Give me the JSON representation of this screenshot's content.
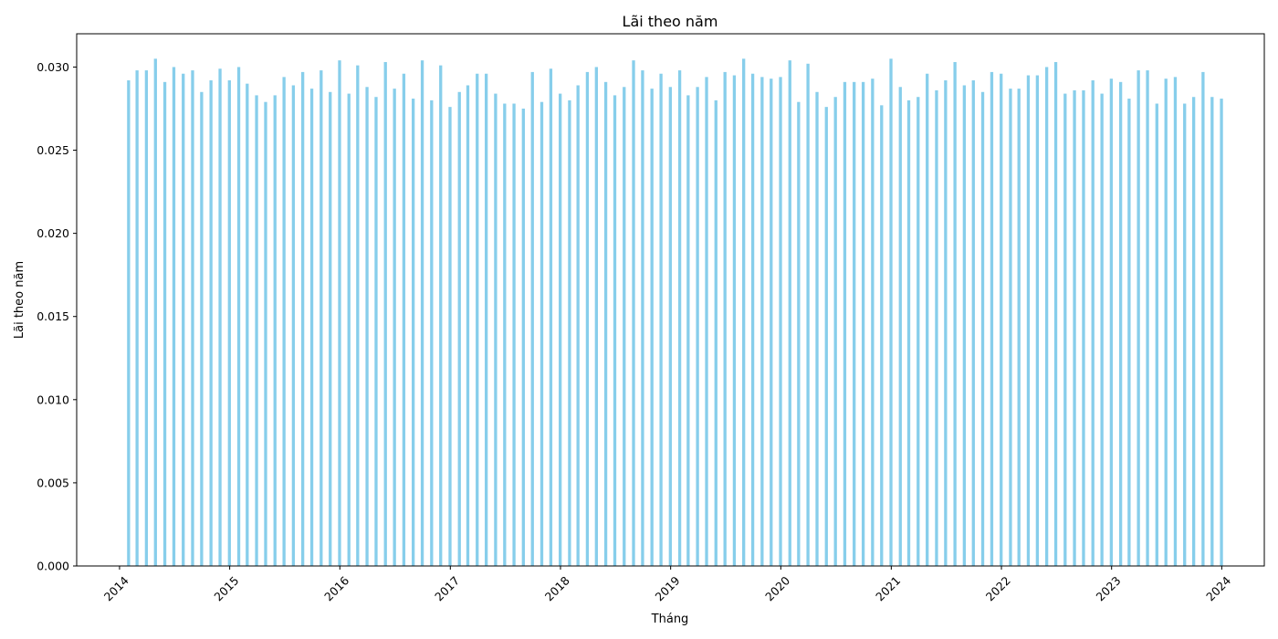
{
  "chart_data": {
    "type": "bar",
    "title": "Lãi theo năm",
    "xlabel": "Tháng",
    "ylabel": "Lãi theo năm",
    "color": "#87ceeb",
    "ylim": [
      0,
      0.032
    ],
    "xlim": [
      "2013-08-12",
      "2024-05-21"
    ],
    "yticks": [
      0.0,
      0.005,
      0.01,
      0.015,
      0.02,
      0.025,
      0.03
    ],
    "ytick_labels": [
      "0.000",
      "0.005",
      "0.010",
      "0.015",
      "0.020",
      "0.025",
      "0.030"
    ],
    "xticks": [
      "2014-01-01",
      "2015-01-01",
      "2016-01-01",
      "2017-01-01",
      "2018-01-01",
      "2019-01-01",
      "2020-01-01",
      "2021-01-01",
      "2022-01-01",
      "2023-01-01",
      "2024-01-01"
    ],
    "xtick_labels": [
      "2014",
      "2015",
      "2016",
      "2017",
      "2018",
      "2019",
      "2020",
      "2021",
      "2022",
      "2023",
      "2024"
    ],
    "grid": false,
    "legend": false,
    "x": [
      "2014-01-31",
      "2014-02-28",
      "2014-03-31",
      "2014-04-30",
      "2014-05-31",
      "2014-06-30",
      "2014-07-31",
      "2014-08-31",
      "2014-09-30",
      "2014-10-31",
      "2014-11-30",
      "2014-12-31",
      "2015-01-31",
      "2015-02-28",
      "2015-03-31",
      "2015-04-30",
      "2015-05-31",
      "2015-06-30",
      "2015-07-31",
      "2015-08-31",
      "2015-09-30",
      "2015-10-31",
      "2015-11-30",
      "2015-12-31",
      "2016-01-31",
      "2016-02-29",
      "2016-03-31",
      "2016-04-30",
      "2016-05-31",
      "2016-06-30",
      "2016-07-31",
      "2016-08-31",
      "2016-09-30",
      "2016-10-31",
      "2016-11-30",
      "2016-12-31",
      "2017-01-31",
      "2017-02-28",
      "2017-03-31",
      "2017-04-30",
      "2017-05-31",
      "2017-06-30",
      "2017-07-31",
      "2017-08-31",
      "2017-09-30",
      "2017-10-31",
      "2017-11-30",
      "2017-12-31",
      "2018-01-31",
      "2018-02-28",
      "2018-03-31",
      "2018-04-30",
      "2018-05-31",
      "2018-06-30",
      "2018-07-31",
      "2018-08-31",
      "2018-09-30",
      "2018-10-31",
      "2018-11-30",
      "2018-12-31",
      "2019-01-31",
      "2019-02-28",
      "2019-03-31",
      "2019-04-30",
      "2019-05-31",
      "2019-06-30",
      "2019-07-31",
      "2019-08-31",
      "2019-09-30",
      "2019-10-31",
      "2019-11-30",
      "2019-12-31",
      "2020-01-31",
      "2020-02-29",
      "2020-03-31",
      "2020-04-30",
      "2020-05-31",
      "2020-06-30",
      "2020-07-31",
      "2020-08-31",
      "2020-09-30",
      "2020-10-31",
      "2020-11-30",
      "2020-12-31",
      "2021-01-31",
      "2021-02-28",
      "2021-03-31",
      "2021-04-30",
      "2021-05-31",
      "2021-06-30",
      "2021-07-31",
      "2021-08-31",
      "2021-09-30",
      "2021-10-31",
      "2021-11-30",
      "2021-12-31",
      "2022-01-31",
      "2022-02-28",
      "2022-03-31",
      "2022-04-30",
      "2022-05-31",
      "2022-06-30",
      "2022-07-31",
      "2022-08-31",
      "2022-09-30",
      "2022-10-31",
      "2022-11-30",
      "2022-12-31",
      "2023-01-31",
      "2023-02-28",
      "2023-03-31",
      "2023-04-30",
      "2023-05-31",
      "2023-06-30",
      "2023-07-31",
      "2023-08-31",
      "2023-09-30",
      "2023-10-31",
      "2023-11-30",
      "2023-12-31"
    ],
    "values": [
      0.0292,
      0.0298,
      0.0298,
      0.0305,
      0.0291,
      0.03,
      0.0296,
      0.0298,
      0.0285,
      0.0292,
      0.0299,
      0.0292,
      0.03,
      0.029,
      0.0283,
      0.0279,
      0.0283,
      0.0294,
      0.0289,
      0.0297,
      0.0287,
      0.0298,
      0.0285,
      0.0304,
      0.0284,
      0.0301,
      0.0288,
      0.0282,
      0.0303,
      0.0287,
      0.0296,
      0.0281,
      0.0304,
      0.028,
      0.0301,
      0.0276,
      0.0285,
      0.0289,
      0.0296,
      0.0296,
      0.0284,
      0.0278,
      0.0278,
      0.0275,
      0.0297,
      0.0279,
      0.0299,
      0.0284,
      0.028,
      0.0289,
      0.0297,
      0.03,
      0.0291,
      0.0283,
      0.0288,
      0.0304,
      0.0298,
      0.0287,
      0.0296,
      0.0288,
      0.0298,
      0.0283,
      0.0288,
      0.0294,
      0.028,
      0.0297,
      0.0295,
      0.0305,
      0.0296,
      0.0294,
      0.0293,
      0.0294,
      0.0304,
      0.0279,
      0.0302,
      0.0285,
      0.0276,
      0.0282,
      0.0291,
      0.0291,
      0.0291,
      0.0293,
      0.0277,
      0.0305,
      0.0288,
      0.028,
      0.0282,
      0.0296,
      0.0286,
      0.0292,
      0.0303,
      0.0289,
      0.0292,
      0.0285,
      0.0297,
      0.0296,
      0.0287,
      0.0287,
      0.0295,
      0.0295,
      0.03,
      0.0303,
      0.0284,
      0.0286,
      0.0286,
      0.0292,
      0.0284,
      0.0293,
      0.0291,
      0.0281,
      0.0298,
      0.0298,
      0.0278,
      0.0293,
      0.0294,
      0.0278,
      0.0282,
      0.0297,
      0.0282,
      0.0281
    ]
  }
}
